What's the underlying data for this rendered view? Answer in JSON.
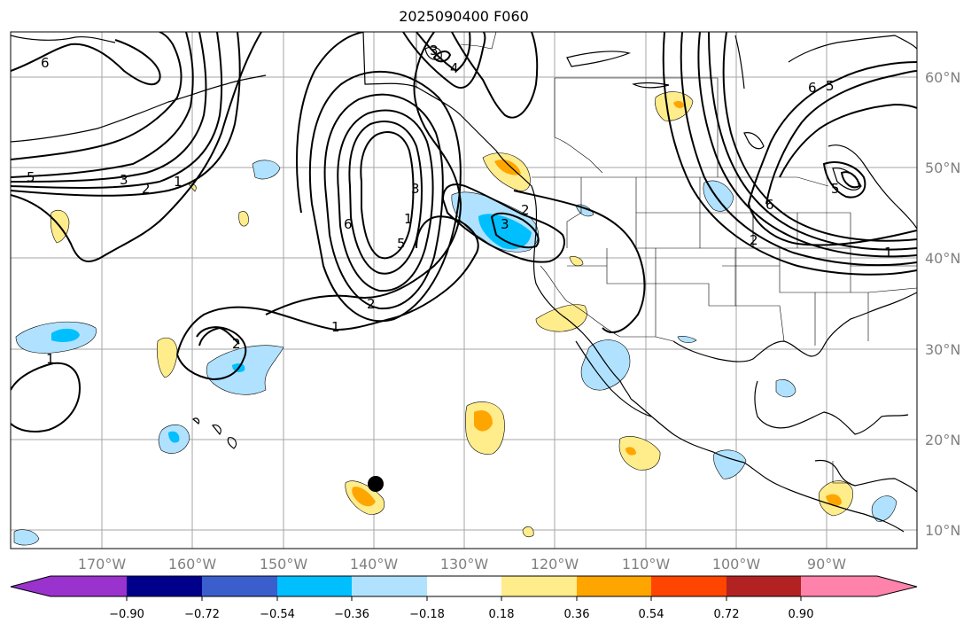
{
  "title": "2025090400 F060",
  "lat_labels": [
    "60°N",
    "50°N",
    "40°N",
    "30°N",
    "20°N",
    "10°N"
  ],
  "lon_labels": [
    "170°W",
    "160°W",
    "150°W",
    "140°W",
    "130°W",
    "120°W",
    "110°W",
    "100°W",
    "90°W"
  ],
  "colorbar": {
    "tick_labels": [
      "−0.90",
      "−0.72",
      "−0.54",
      "−0.36",
      "−0.18",
      "0.18",
      "0.36",
      "0.54",
      "0.72",
      "0.90"
    ],
    "colors": [
      "#9a32cd",
      "#00008b",
      "#3a5fcd",
      "#00bfff",
      "#b0e2ff",
      "#ffffff",
      "#ffec8b",
      "#ffa500",
      "#ff4500",
      "#b22222",
      "#ff82ab"
    ]
  },
  "contour_labels": [
    "6",
    "5",
    "3",
    "2",
    "1",
    "6",
    "5",
    "3",
    "1",
    "2",
    "1",
    "2",
    "1",
    "3",
    "2",
    "4",
    "3",
    "6",
    "5",
    "6",
    "2",
    "1",
    "5"
  ],
  "marker": {
    "name": "storm-position",
    "color": "#000000"
  }
}
